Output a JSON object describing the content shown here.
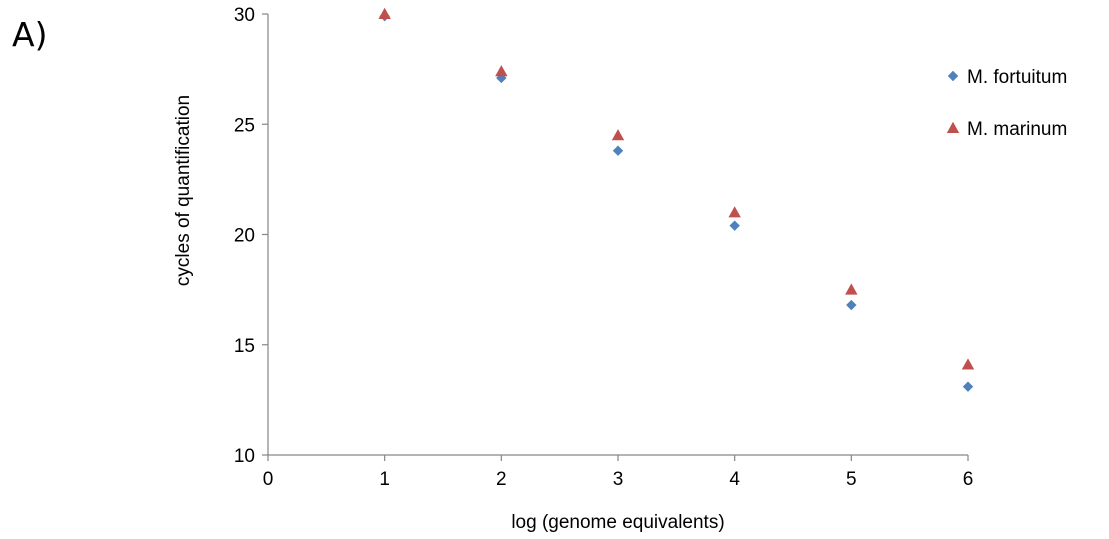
{
  "panel_label": "A)",
  "chart_data": {
    "type": "scatter",
    "title": "",
    "xlabel": "log (genome equivalents)",
    "ylabel": "cycles of quantification",
    "xlim": [
      0,
      6
    ],
    "ylim": [
      10,
      30
    ],
    "x_ticks": [
      0,
      1,
      2,
      3,
      4,
      5,
      6
    ],
    "y_ticks": [
      10,
      15,
      20,
      25,
      30
    ],
    "grid": false,
    "legend_position": "right",
    "series": [
      {
        "name": "M. fortuitum",
        "marker": "diamond",
        "color": "#4F81BD",
        "x": [
          1,
          2,
          3,
          4,
          5,
          6
        ],
        "y": [
          29.9,
          27.1,
          23.8,
          20.4,
          16.8,
          13.1
        ]
      },
      {
        "name": "M. marinum",
        "marker": "triangle",
        "color": "#C0504D",
        "x": [
          1,
          2,
          3,
          4,
          5,
          6
        ],
        "y": [
          30.0,
          27.4,
          24.5,
          21.0,
          17.5,
          14.1
        ]
      }
    ]
  }
}
